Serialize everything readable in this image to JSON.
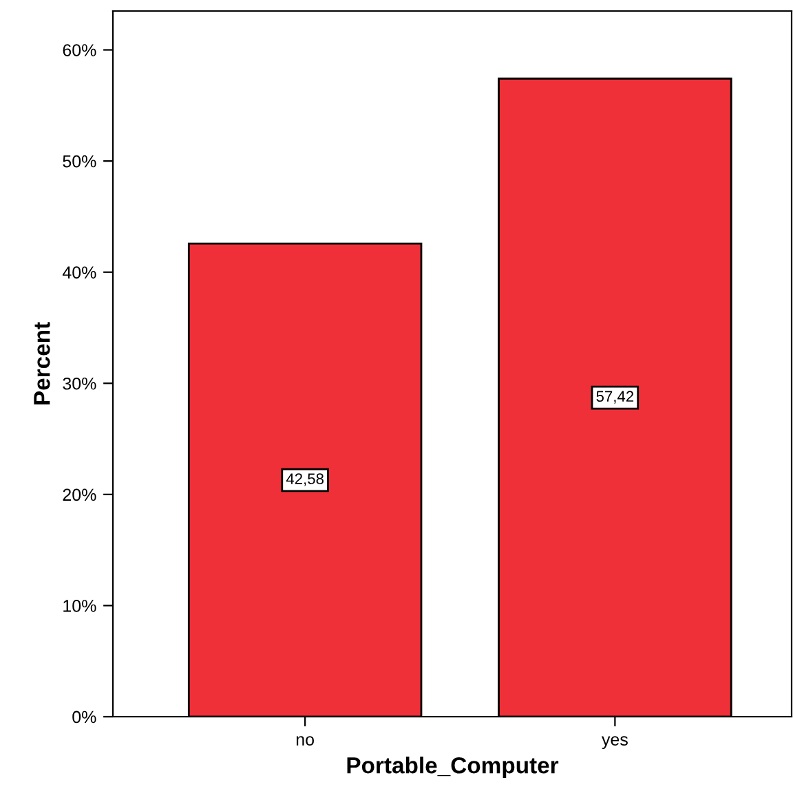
{
  "chart_data": {
    "type": "bar",
    "xlabel": "Portable_Computer",
    "ylabel": "Percent",
    "categories": [
      "no",
      "yes"
    ],
    "values": [
      42.58,
      57.42
    ],
    "value_labels": [
      "42,58",
      "57,42"
    ],
    "color": "#f03039",
    "ylim": [
      0,
      63.5
    ],
    "yticks": [
      {
        "value": 0,
        "label": "0%"
      },
      {
        "value": 10,
        "label": "10%"
      },
      {
        "value": 20,
        "label": "20%"
      },
      {
        "value": 30,
        "label": "30%"
      },
      {
        "value": 40,
        "label": "40%"
      },
      {
        "value": 50,
        "label": "50%"
      },
      {
        "value": 60,
        "label": "60%"
      }
    ],
    "grid": false
  }
}
